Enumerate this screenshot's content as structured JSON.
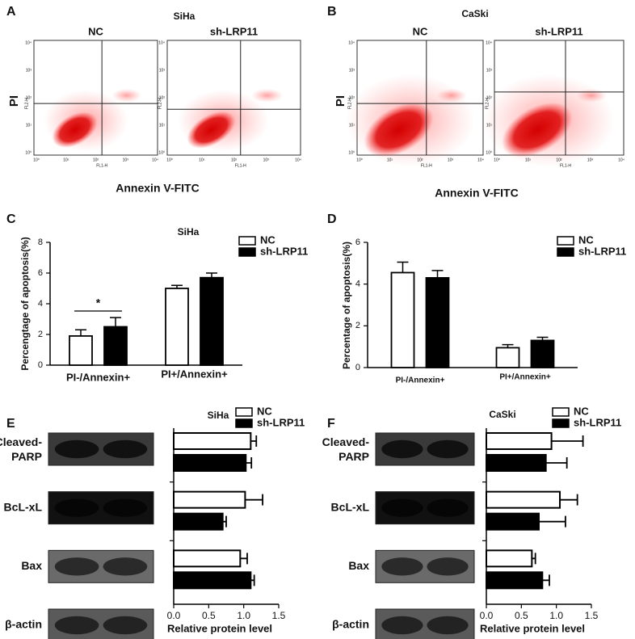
{
  "flow_panels": [
    {
      "panel_label": "A",
      "title": "SiHa",
      "subplots": [
        "NC",
        "sh-LRP11"
      ],
      "y_label": "PI",
      "x_label": "Annexin V-FITC"
    },
    {
      "panel_label": "B",
      "title": "CaSki",
      "subplots": [
        "NC",
        "sh-LRP11"
      ],
      "y_label": "PI",
      "x_label": "Annexin V-FITC"
    }
  ],
  "flow_axis": {
    "ticks": [
      "10⁰",
      "10¹",
      "10²",
      "10³",
      "10⁴"
    ],
    "x_channel": "FL1-H",
    "y_channel": "FL2-H"
  },
  "chart_data": [
    {
      "type": "bar",
      "panel_label": "C",
      "title": "SiHa",
      "y_label": "Percengtage of apoptosis(%)",
      "categories": [
        "PI-/Annexin+",
        "PI+/Annexin+"
      ],
      "series": [
        {
          "name": "NC",
          "color": "#ffffff",
          "values": [
            1.9,
            5.0
          ],
          "errors": [
            0.4,
            0.2
          ]
        },
        {
          "name": "sh-LRP11",
          "color": "#000000",
          "values": [
            2.5,
            5.7
          ],
          "errors": [
            0.6,
            0.3
          ]
        }
      ],
      "ylim": [
        0,
        8
      ],
      "yticks": [
        0,
        2,
        4,
        6,
        8
      ],
      "annotation": "*"
    },
    {
      "type": "bar",
      "panel_label": "D",
      "y_label": "Percentage of apoptosis(%)",
      "categories": [
        "PI-/Annexin+",
        "PI+/Annexin+"
      ],
      "series": [
        {
          "name": "NC",
          "color": "#ffffff",
          "values": [
            4.55,
            0.95
          ],
          "errors": [
            0.5,
            0.15
          ]
        },
        {
          "name": "sh-LRP11",
          "color": "#000000",
          "values": [
            4.3,
            1.3
          ],
          "errors": [
            0.35,
            0.15
          ]
        }
      ],
      "ylim": [
        0,
        6
      ],
      "yticks": [
        0,
        2,
        4,
        6
      ]
    },
    {
      "type": "barh",
      "panel_label": "E",
      "title": "SiHa",
      "x_label": "Relative protein level",
      "categories": [
        "Cleaved-PARP",
        "BcL-xL",
        "Bax"
      ],
      "loading_control": "β-actin",
      "series": [
        {
          "name": "NC",
          "color": "#ffffff",
          "values": [
            1.1,
            1.02,
            0.95
          ],
          "errors": [
            0.08,
            0.25,
            0.1
          ]
        },
        {
          "name": "sh-LRP11",
          "color": "#000000",
          "values": [
            1.03,
            0.7,
            1.1
          ],
          "errors": [
            0.08,
            0.05,
            0.05
          ]
        }
      ],
      "xlim": [
        0,
        1.5
      ],
      "xticks": [
        {
          "value": 0,
          "label": "0.0"
        },
        0.5,
        {
          "value": 1,
          "label": "1.0"
        },
        1.5
      ]
    },
    {
      "type": "barh",
      "panel_label": "F",
      "title": "CaSki",
      "x_label": "Relative protein level",
      "categories": [
        "Cleaved-PARP",
        "BcL-xL",
        "Bax"
      ],
      "loading_control": "β-actin",
      "series": [
        {
          "name": "NC",
          "color": "#ffffff",
          "values": [
            0.93,
            1.05,
            0.65
          ],
          "errors": [
            0.45,
            0.25,
            0.05
          ]
        },
        {
          "name": "sh-LRP11",
          "color": "#000000",
          "values": [
            0.85,
            0.75,
            0.8
          ],
          "errors": [
            0.3,
            0.38,
            0.1
          ]
        }
      ],
      "xlim": [
        0,
        1.5
      ],
      "xticks": [
        {
          "value": 0,
          "label": "0.0"
        },
        0.5,
        {
          "value": 1,
          "label": "1.0"
        },
        1.5
      ]
    }
  ]
}
